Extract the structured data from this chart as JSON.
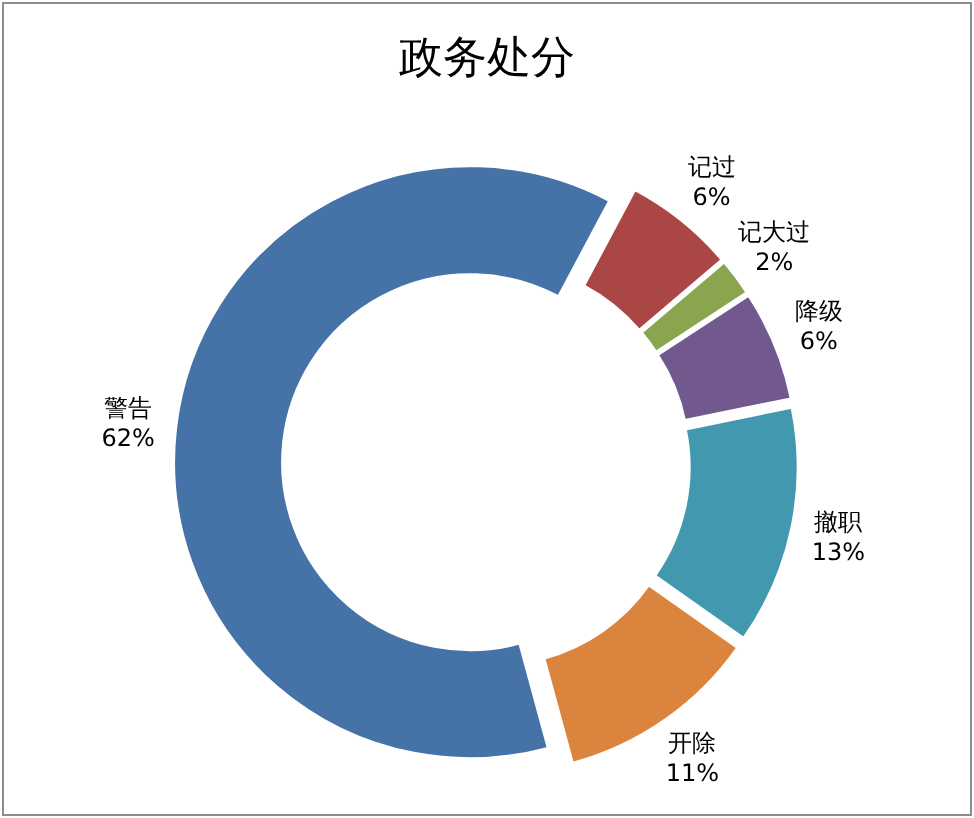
{
  "chart_data": {
    "type": "donut",
    "title": "政务处分",
    "categories": [
      "记过",
      "记大过",
      "降级",
      "撤职",
      "开除",
      "警告"
    ],
    "values": [
      6,
      2,
      6,
      13,
      11,
      62
    ],
    "value_labels": [
      "6%",
      "2%",
      "6%",
      "13%",
      "11%",
      "62%"
    ],
    "colors": [
      "#aa4643",
      "#89a54e",
      "#71588f",
      "#4198af",
      "#db843d",
      "#4572a7"
    ]
  }
}
